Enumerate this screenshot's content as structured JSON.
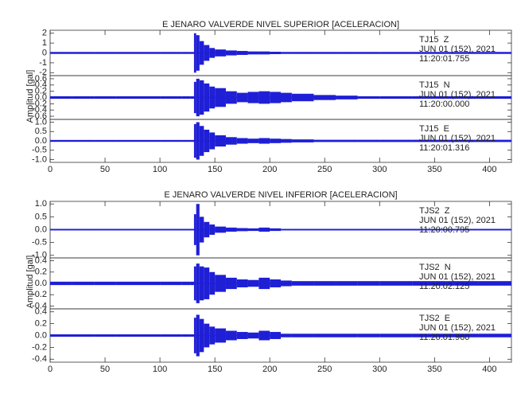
{
  "chart_data": [
    {
      "type": "waveform",
      "title": "E JENARO VALVERDE NIVEL SUPERIOR [ACELERACION]",
      "y_label": "Amplitud [gal]",
      "xlim": [
        0,
        420
      ],
      "xticks": [
        0,
        50,
        100,
        150,
        200,
        250,
        300,
        350,
        400
      ],
      "color": "#1f1fd6",
      "grid": false,
      "x": [
        0,
        20,
        40,
        60,
        80,
        100,
        120,
        128,
        131,
        133,
        136,
        140,
        145,
        150,
        160,
        170,
        180,
        190,
        200,
        210,
        220,
        240,
        260,
        280,
        300,
        330,
        360,
        390
      ],
      "series": [
        {
          "name": "TJ15  Z",
          "date": "JUN 01 (152), 2021",
          "time": "11:20:01.755",
          "ylim": [
            -2.3,
            2.3
          ],
          "yticks": [
            -2,
            -1,
            0,
            1,
            2
          ],
          "values": [
            0.1,
            0.1,
            0.1,
            0.1,
            0.1,
            0.1,
            0.1,
            0.1,
            2.0,
            1.8,
            1.2,
            0.8,
            0.5,
            0.35,
            0.25,
            0.2,
            0.15,
            0.15,
            0.12,
            0.1,
            0.1,
            0.1,
            0.1,
            0.1,
            0.1,
            0.1,
            0.1,
            0.1
          ]
        },
        {
          "name": "TJ15  N",
          "date": "JUN 01 (152), 2021",
          "time": "11:20:00.000",
          "ylim": [
            -0.7,
            0.7
          ],
          "yticks": [
            {
              "value": -0.6,
              "label": "-0.6"
            },
            {
              "value": -0.4,
              "label": "-0.4"
            },
            {
              "value": -0.2,
              "label": "-0.2"
            },
            {
              "value": 0,
              "label": "0.0"
            },
            {
              "value": 0.2,
              "label": "0.2"
            },
            {
              "value": 0.4,
              "label": "0.4"
            },
            {
              "value": 0.6,
              "label": "0.6"
            }
          ],
          "values": [
            0.04,
            0.04,
            0.04,
            0.04,
            0.04,
            0.04,
            0.04,
            0.04,
            0.5,
            0.6,
            0.55,
            0.45,
            0.35,
            0.3,
            0.2,
            0.15,
            0.18,
            0.2,
            0.18,
            0.15,
            0.12,
            0.08,
            0.06,
            0.04,
            0.04,
            0.04,
            0.04,
            0.04
          ]
        },
        {
          "name": "TJ15  E",
          "date": "JUN 01 (152), 2021",
          "time": "11:20:01.316",
          "ylim": [
            -1.15,
            1.15
          ],
          "yticks": [
            {
              "value": -1,
              "label": "-1.0"
            },
            {
              "value": -0.5,
              "label": "-0.5"
            },
            {
              "value": 0,
              "label": "0.0"
            },
            {
              "value": 0.5,
              "label": "0.5"
            },
            {
              "value": 1,
              "label": "1.0"
            }
          ],
          "values": [
            0.05,
            0.05,
            0.05,
            0.05,
            0.05,
            0.05,
            0.05,
            0.05,
            0.9,
            1.0,
            0.8,
            0.6,
            0.45,
            0.3,
            0.2,
            0.15,
            0.12,
            0.15,
            0.12,
            0.1,
            0.08,
            0.06,
            0.06,
            0.06,
            0.06,
            0.06,
            0.06,
            0.06
          ]
        }
      ]
    },
    {
      "type": "waveform",
      "title": "E JENARO VALVERDE NIVEL INFERIOR [ACELERACION]",
      "y_label": "Amplitud [gal]",
      "xlim": [
        0,
        420
      ],
      "xticks": [
        0,
        50,
        100,
        150,
        200,
        250,
        300,
        350,
        400
      ],
      "color": "#1f1fd6",
      "grid": false,
      "x": [
        0,
        20,
        40,
        60,
        80,
        100,
        120,
        128,
        131,
        133,
        136,
        140,
        145,
        150,
        160,
        170,
        180,
        190,
        200,
        210,
        220,
        240,
        260,
        280,
        300,
        330,
        360,
        390
      ],
      "series": [
        {
          "name": "TJS2  Z",
          "date": "JUN 01 (152), 2021",
          "time": "11:20:00.795",
          "ylim": [
            -1.1,
            1.1
          ],
          "yticks": [
            {
              "value": -1,
              "label": "-1.0"
            },
            {
              "value": -0.5,
              "label": "-0.5"
            },
            {
              "value": 0,
              "label": "0.0"
            },
            {
              "value": 0.5,
              "label": "0.5"
            },
            {
              "value": 1,
              "label": "1.0"
            }
          ],
          "values": [
            0.03,
            0.03,
            0.03,
            0.03,
            0.03,
            0.03,
            0.03,
            0.03,
            0.6,
            1.0,
            0.5,
            0.3,
            0.2,
            0.12,
            0.08,
            0.06,
            0.05,
            0.08,
            0.05,
            0.03,
            0.03,
            0.03,
            0.03,
            0.03,
            0.03,
            0.03,
            0.03,
            0.03
          ]
        },
        {
          "name": "TJS2  N",
          "date": "JUN 01 (152), 2021",
          "time": "11:20:02.125",
          "ylim": [
            -0.45,
            0.45
          ],
          "yticks": [
            {
              "value": -0.4,
              "label": "-0.4"
            },
            {
              "value": -0.2,
              "label": "-0.2"
            },
            {
              "value": 0,
              "label": "0.0"
            },
            {
              "value": 0.2,
              "label": "0.2"
            },
            {
              "value": 0.4,
              "label": "0.4"
            }
          ],
          "values": [
            0.03,
            0.03,
            0.03,
            0.03,
            0.03,
            0.03,
            0.03,
            0.03,
            0.3,
            0.35,
            0.3,
            0.28,
            0.2,
            0.15,
            0.1,
            0.07,
            0.06,
            0.1,
            0.07,
            0.05,
            0.04,
            0.04,
            0.04,
            0.04,
            0.04,
            0.04,
            0.04,
            0.04
          ]
        },
        {
          "name": "TJS2  E",
          "date": "JUN 01 (152), 2021",
          "time": "11:20:01.960",
          "ylim": [
            -0.45,
            0.45
          ],
          "yticks": [
            {
              "value": -0.4,
              "label": "-0.4"
            },
            {
              "value": -0.2,
              "label": "-0.2"
            },
            {
              "value": 0,
              "label": "0.0"
            },
            {
              "value": 0.2,
              "label": "0.2"
            },
            {
              "value": 0.4,
              "label": "0.4"
            }
          ],
          "values": [
            0.02,
            0.02,
            0.02,
            0.02,
            0.02,
            0.02,
            0.02,
            0.02,
            0.3,
            0.35,
            0.28,
            0.2,
            0.15,
            0.12,
            0.08,
            0.06,
            0.05,
            0.08,
            0.06,
            0.03,
            0.03,
            0.03,
            0.03,
            0.03,
            0.03,
            0.03,
            0.03,
            0.03
          ]
        }
      ]
    }
  ]
}
